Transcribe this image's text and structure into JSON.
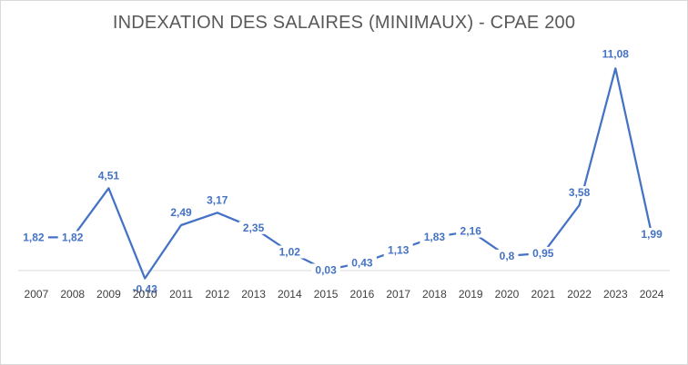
{
  "chart_data": {
    "type": "line",
    "title": "INDEXATION DES SALAIRES (MINIMAUX) - CPAE 200",
    "xlabel": "",
    "ylabel": "",
    "x": [
      "2007",
      "2008",
      "2009",
      "2010",
      "2011",
      "2012",
      "2013",
      "2014",
      "2015",
      "2016",
      "2017",
      "2018",
      "2019",
      "2020",
      "2021",
      "2022",
      "2023",
      "2024"
    ],
    "series": [
      {
        "values": [
          1.82,
          1.82,
          4.51,
          -0.43,
          2.49,
          3.17,
          2.35,
          1.02,
          0.03,
          0.43,
          1.13,
          1.83,
          2.16,
          0.8,
          0.95,
          3.58,
          11.08,
          1.99
        ],
        "labels": [
          "1,82",
          "1,82",
          "4,51",
          "-0,43",
          "2,49",
          "3,17",
          "2,35",
          "1,02",
          "0,03",
          "0,43",
          "1,13",
          "1,83",
          "2,16",
          "0,8",
          "0,95",
          "3,58",
          "11,08",
          "1,99"
        ]
      }
    ],
    "ylim": [
      -0.43,
      11.08
    ],
    "grid": false,
    "legend": "none",
    "line_color": "#4472c4",
    "label_color": "#4472c4",
    "axis_color": "#d9d9d9"
  }
}
